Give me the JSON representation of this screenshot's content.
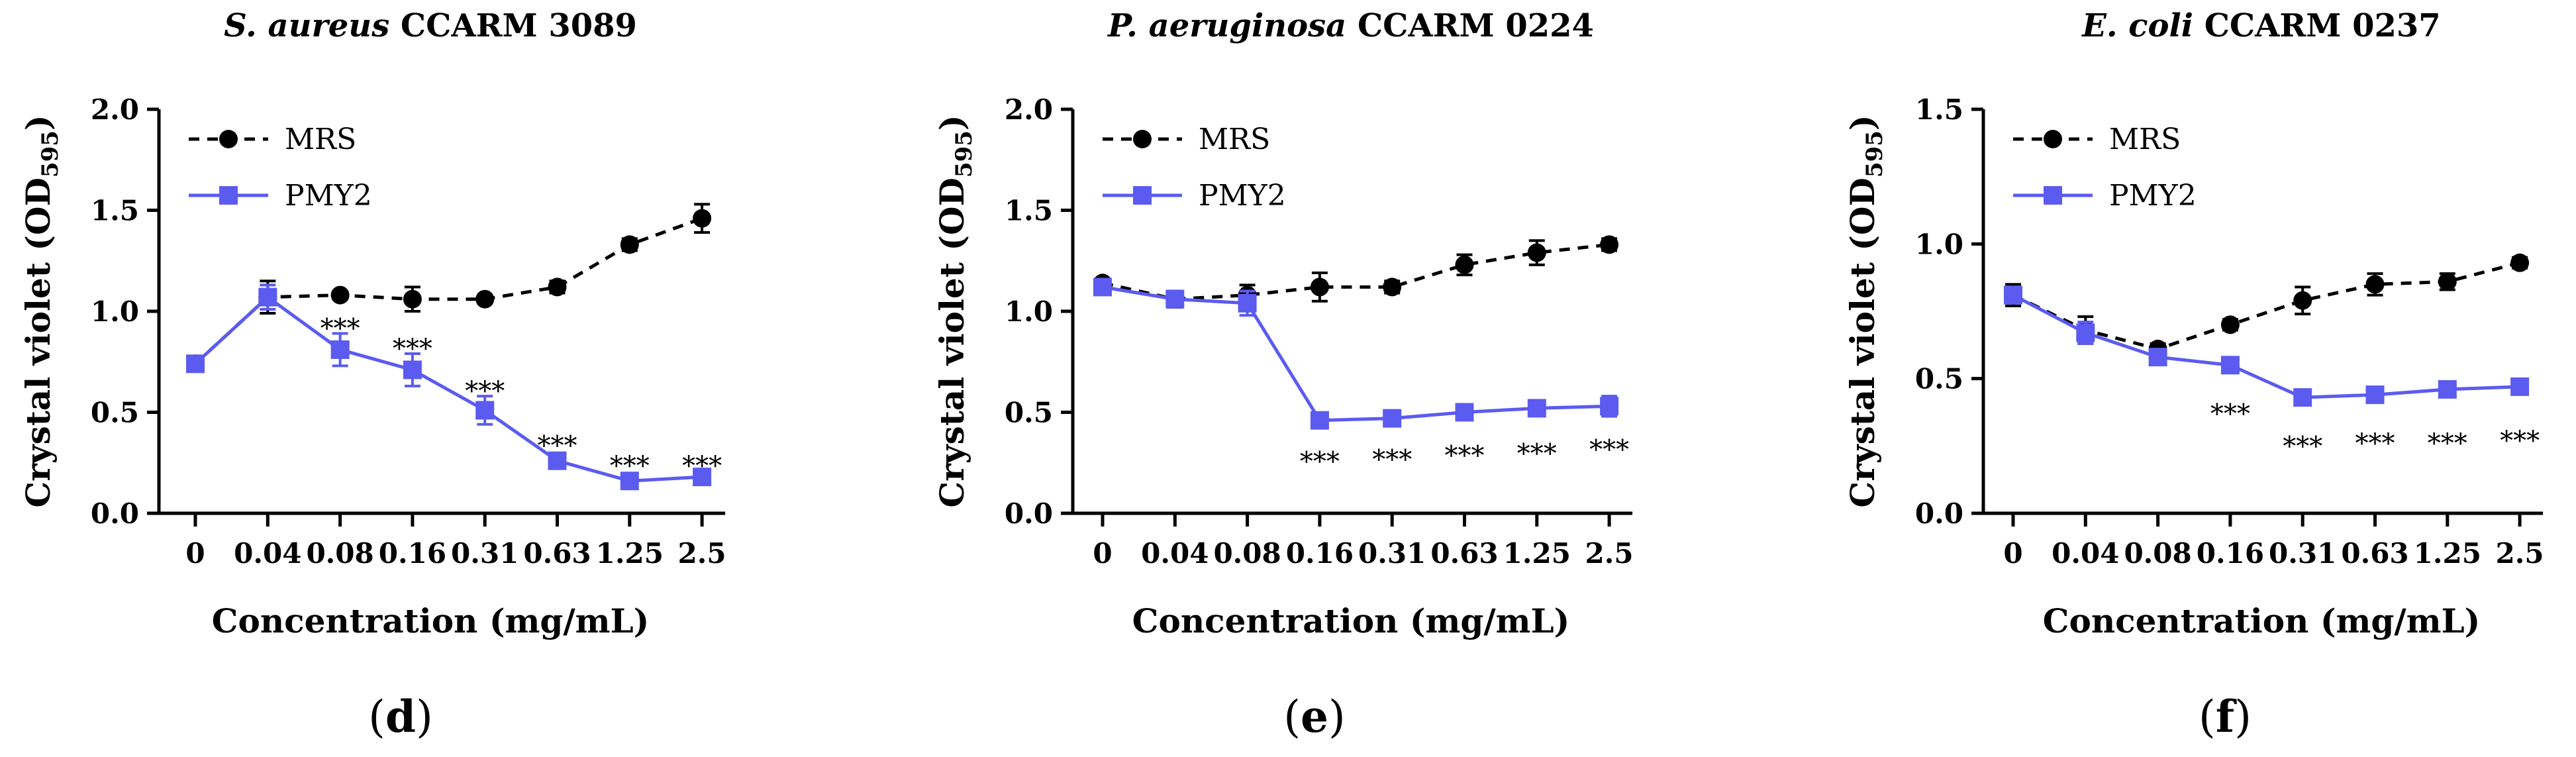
{
  "figure": {
    "panel_labels": [
      "(d)",
      "(e)",
      "(f)"
    ]
  },
  "chart_data": [
    {
      "type": "line",
      "title_italic": "S. aureus",
      "title_rest": " CCARM 3089",
      "xlabel": "Concentration (mg/mL)",
      "ylabel": "Crystal violet (OD",
      "ylabel_sub": "595",
      "ylabel_end": ")",
      "categories": [
        "0",
        "0.04",
        "0.08",
        "0.16",
        "0.31",
        "0.63",
        "1.25",
        "2.5"
      ],
      "ylim": [
        0,
        2.0
      ],
      "yticks": [
        "0.0",
        "0.5",
        "1.0",
        "1.5",
        "2.0"
      ],
      "ytick_values": [
        0,
        0.5,
        1.0,
        1.5,
        2.0
      ],
      "legend_position": "top-left",
      "series": [
        {
          "name": "MRS",
          "color": "#000000",
          "dashed": true,
          "marker": "circle",
          "values": [
            0.74,
            1.07,
            1.08,
            1.06,
            1.06,
            1.12,
            1.33,
            1.46
          ],
          "errors": [
            0.03,
            0.08,
            0.02,
            0.06,
            0.02,
            0.03,
            0.03,
            0.07
          ]
        },
        {
          "name": "PMY2",
          "color": "#5b5bf0",
          "dashed": false,
          "marker": "square",
          "values": [
            0.74,
            1.07,
            0.81,
            0.71,
            0.51,
            0.26,
            0.16,
            0.18
          ],
          "errors": [
            0.03,
            0.06,
            0.08,
            0.08,
            0.07,
            0.03,
            0.02,
            0.02
          ]
        }
      ],
      "significance": [
        {
          "index": 2,
          "label": "***",
          "y": 0.93
        },
        {
          "index": 3,
          "label": "***",
          "y": 0.83
        },
        {
          "index": 4,
          "label": "***",
          "y": 0.62
        },
        {
          "index": 5,
          "label": "***",
          "y": 0.35
        },
        {
          "index": 6,
          "label": "***",
          "y": 0.25
        },
        {
          "index": 7,
          "label": "***",
          "y": 0.25
        }
      ]
    },
    {
      "type": "line",
      "title_italic": "P. aeruginosa",
      "title_rest": " CCARM 0224",
      "xlabel": "Concentration (mg/mL)",
      "ylabel": "Crystal violet (OD",
      "ylabel_sub": "595",
      "ylabel_end": ")",
      "categories": [
        "0",
        "0.04",
        "0.08",
        "0.16",
        "0.31",
        "0.63",
        "1.25",
        "2.5"
      ],
      "ylim": [
        0,
        2.0
      ],
      "yticks": [
        "0.0",
        "0.5",
        "1.0",
        "1.5",
        "2.0"
      ],
      "ytick_values": [
        0,
        0.5,
        1.0,
        1.5,
        2.0
      ],
      "legend_position": "top-left",
      "series": [
        {
          "name": "MRS",
          "color": "#000000",
          "dashed": true,
          "marker": "circle",
          "values": [
            1.14,
            1.06,
            1.08,
            1.12,
            1.12,
            1.23,
            1.29,
            1.33
          ],
          "errors": [
            0.02,
            0.04,
            0.05,
            0.07,
            0.03,
            0.05,
            0.06,
            0.03
          ]
        },
        {
          "name": "PMY2",
          "color": "#5b5bf0",
          "dashed": false,
          "marker": "square",
          "values": [
            1.12,
            1.06,
            1.04,
            0.46,
            0.47,
            0.5,
            0.52,
            0.53
          ],
          "errors": [
            0.02,
            0.03,
            0.06,
            0.02,
            0.02,
            0.03,
            0.03,
            0.05
          ]
        }
      ],
      "significance": [
        {
          "index": 3,
          "label": "***",
          "y": 0.27
        },
        {
          "index": 4,
          "label": "***",
          "y": 0.28
        },
        {
          "index": 5,
          "label": "***",
          "y": 0.3
        },
        {
          "index": 6,
          "label": "***",
          "y": 0.31
        },
        {
          "index": 7,
          "label": "***",
          "y": 0.33
        }
      ]
    },
    {
      "type": "line",
      "title_italic": "E. coli",
      "title_rest": " CCARM 0237",
      "xlabel": "Concentration (mg/mL)",
      "ylabel": "Crystal violet (OD",
      "ylabel_sub": "595",
      "ylabel_end": ")",
      "categories": [
        "0",
        "0.04",
        "0.08",
        "0.16",
        "0.31",
        "0.63",
        "1.25",
        "2.5"
      ],
      "ylim": [
        0,
        1.5
      ],
      "yticks": [
        "0.0",
        "0.5",
        "1.0",
        "1.5"
      ],
      "ytick_values": [
        0,
        0.5,
        1.0,
        1.5
      ],
      "legend_position": "top-left",
      "series": [
        {
          "name": "MRS",
          "color": "#000000",
          "dashed": true,
          "marker": "circle",
          "values": [
            0.81,
            0.68,
            0.61,
            0.7,
            0.79,
            0.85,
            0.86,
            0.93
          ],
          "errors": [
            0.04,
            0.05,
            0.02,
            0.02,
            0.05,
            0.04,
            0.03,
            0.02
          ]
        },
        {
          "name": "PMY2",
          "color": "#5b5bf0",
          "dashed": false,
          "marker": "square",
          "values": [
            0.81,
            0.67,
            0.58,
            0.55,
            0.43,
            0.44,
            0.46,
            0.47
          ],
          "errors": [
            0.03,
            0.04,
            0.02,
            0.02,
            0.02,
            0.02,
            0.02,
            0.02
          ]
        }
      ],
      "significance": [
        {
          "index": 3,
          "label": "***",
          "y": 0.38
        },
        {
          "index": 4,
          "label": "***",
          "y": 0.26
        },
        {
          "index": 5,
          "label": "***",
          "y": 0.27
        },
        {
          "index": 6,
          "label": "***",
          "y": 0.27
        },
        {
          "index": 7,
          "label": "***",
          "y": 0.28
        }
      ]
    }
  ]
}
